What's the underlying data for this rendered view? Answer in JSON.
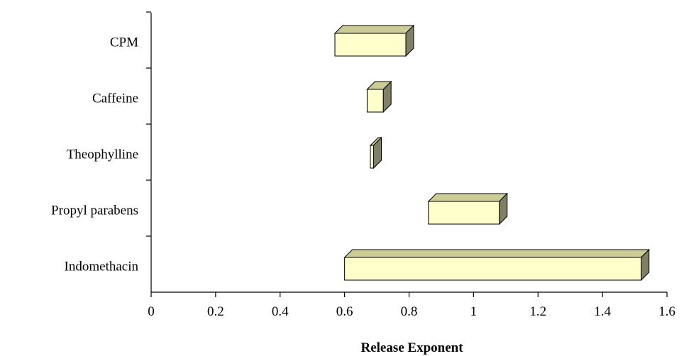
{
  "chart_data": {
    "type": "bar",
    "orientation": "horizontal",
    "style": "floating-range-3d",
    "categories": [
      "CPM",
      "Caffeine",
      "Theophylline",
      "Propyl parabens",
      "Indomethacin"
    ],
    "ranges": [
      [
        0.57,
        0.79
      ],
      [
        0.67,
        0.72
      ],
      [
        0.68,
        0.69
      ],
      [
        0.86,
        1.08
      ],
      [
        0.6,
        1.52
      ]
    ],
    "xlabel": "Release Exponent",
    "ylabel": "",
    "title": "",
    "xlim": [
      0,
      1.6
    ],
    "xticks": [
      "0",
      "0.2",
      "0.4",
      "0.6",
      "0.8",
      "1",
      "1.2",
      "1.4",
      "1.6"
    ],
    "grid": false,
    "legend": "none",
    "colors": {
      "bar_front": "#FFFFCC",
      "bar_top": "#CCCC99",
      "bar_side": "#808066"
    }
  }
}
